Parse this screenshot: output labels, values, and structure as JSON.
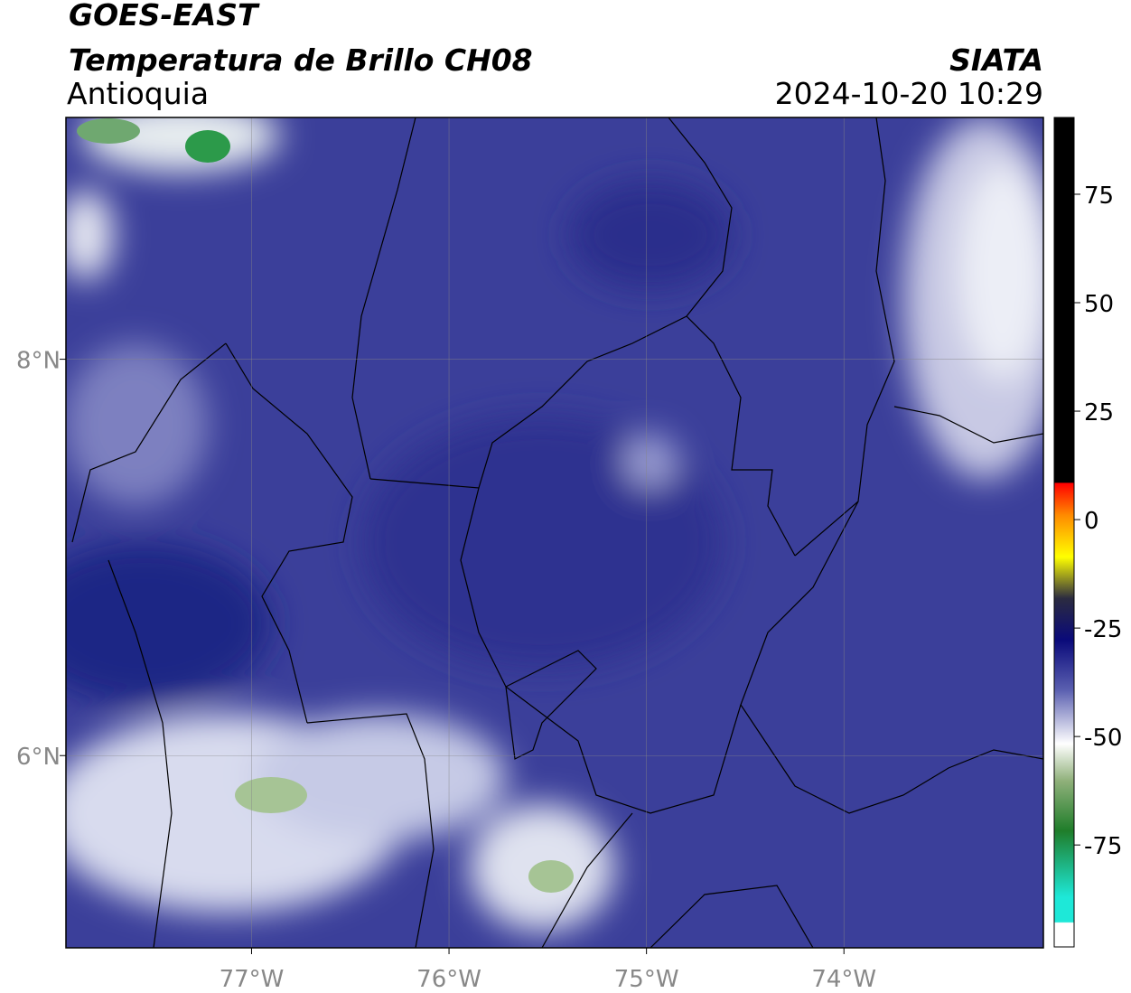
{
  "header": {
    "title": "GOES-EAST",
    "subtitle": "Temperatura de Brillo CH08",
    "region": "Antioquia",
    "source": "SIATA",
    "timestamp": "2024-10-20 10:29"
  },
  "map": {
    "xlim": [
      -77.94,
      -72.99
    ],
    "ylim": [
      5.03,
      9.22
    ],
    "xticks": [
      {
        "value": -77,
        "label": "77°W"
      },
      {
        "value": -76,
        "label": "76°W"
      },
      {
        "value": -75,
        "label": "75°W"
      },
      {
        "value": -74,
        "label": "74°W"
      }
    ],
    "yticks": [
      {
        "value": 8,
        "label": "8°N"
      },
      {
        "value": 6,
        "label": "6°N"
      }
    ]
  },
  "colorbar": {
    "lim": [
      -98.5,
      92.7
    ],
    "ticks": [
      75,
      50,
      25,
      0,
      -25,
      -50,
      -75
    ]
  }
}
